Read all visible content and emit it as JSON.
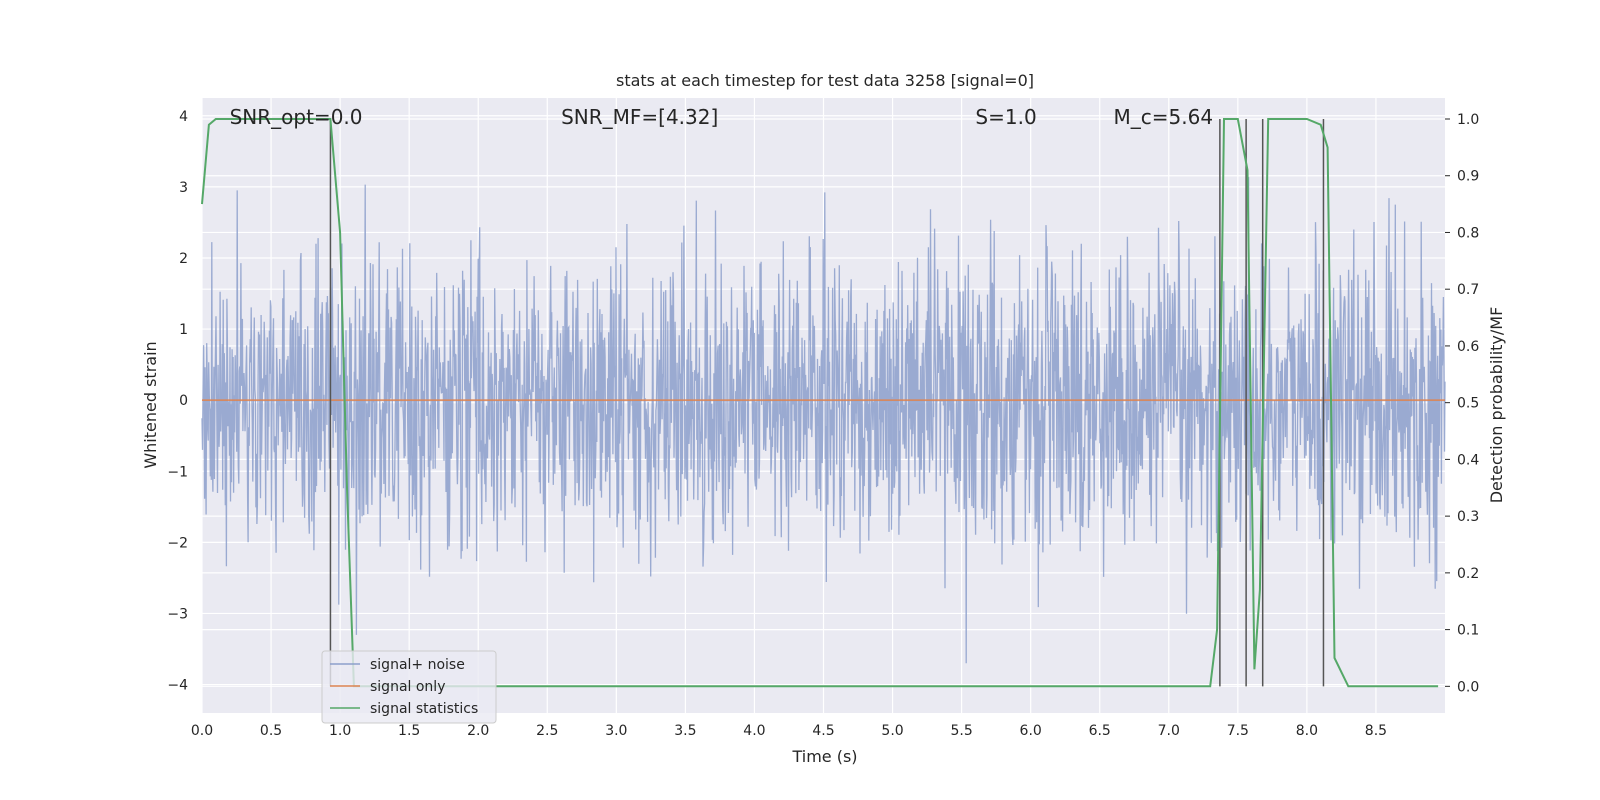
{
  "chart_data": {
    "type": "line",
    "title": "stats at each timestep for test data 3258 [signal=0]",
    "xlabel": "Time (s)",
    "ylabel": "Whitened strain",
    "ylabel_right": "Detection probability/MF",
    "xlim": [
      0.0,
      9.0
    ],
    "ylim": [
      -4.4,
      4.25
    ],
    "ylim_right": [
      -0.047,
      1.037
    ],
    "x_ticks": [
      "0.0",
      "0.5",
      "1.0",
      "1.5",
      "2.0",
      "2.5",
      "3.0",
      "3.5",
      "4.0",
      "4.5",
      "5.0",
      "5.5",
      "6.0",
      "6.5",
      "7.0",
      "7.5",
      "8.0",
      "8.5"
    ],
    "y_ticks": [
      "−4",
      "−3",
      "−2",
      "−1",
      "0",
      "1",
      "2",
      "3",
      "4"
    ],
    "y_ticks_right": [
      "0.0",
      "0.1",
      "0.2",
      "0.3",
      "0.4",
      "0.5",
      "0.6",
      "0.7",
      "0.8",
      "0.9",
      "1.0"
    ],
    "grid": true,
    "legend_position": "bottom-left",
    "annotations": [
      {
        "text": "SNR_opt=0.0",
        "x": 0.2
      },
      {
        "text": "SNR_MF=[4.32]",
        "x": 2.6
      },
      {
        "text": "S=1.0",
        "x": 5.6
      },
      {
        "text": "M_c=5.64",
        "x": 6.6
      }
    ],
    "series": [
      {
        "name": "signal+ noise",
        "color": "#8c9fcb",
        "description_values": "noise-like whitened strain, band roughly -1.6..1.6 with peaks to about ±3.7",
        "amplitude_peak": 3.7
      },
      {
        "name": "signal only",
        "color": "#dd8452",
        "values_constant": 0.0
      },
      {
        "name": "signal statistics",
        "color": "#55a868",
        "axis": "right",
        "x": [
          0.0,
          0.05,
          0.1,
          0.2,
          0.5,
          0.9,
          0.93,
          1.0,
          1.05,
          1.1,
          1.5,
          2.0,
          3.0,
          4.0,
          5.0,
          6.0,
          7.0,
          7.3,
          7.35,
          7.4,
          7.45,
          7.5,
          7.57,
          7.62,
          7.66,
          7.72,
          7.78,
          8.0,
          8.1,
          8.15,
          8.2,
          8.3,
          8.5,
          8.95
        ],
        "y": [
          0.85,
          0.99,
          1.0,
          1.0,
          1.0,
          1.0,
          1.0,
          0.8,
          0.35,
          0.0,
          0.0,
          0.0,
          0.0,
          0.0,
          0.0,
          0.0,
          0.0,
          0.0,
          0.1,
          1.0,
          1.0,
          1.0,
          0.91,
          0.03,
          0.17,
          1.0,
          1.0,
          1.0,
          0.99,
          0.95,
          0.05,
          0.0,
          0.0,
          0.0
        ]
      }
    ],
    "vertical_markers_x": [
      0.93,
      7.37,
      7.56,
      7.68,
      8.12
    ]
  },
  "legend": {
    "items": [
      "signal+ noise",
      "signal only",
      "signal statistics"
    ]
  }
}
